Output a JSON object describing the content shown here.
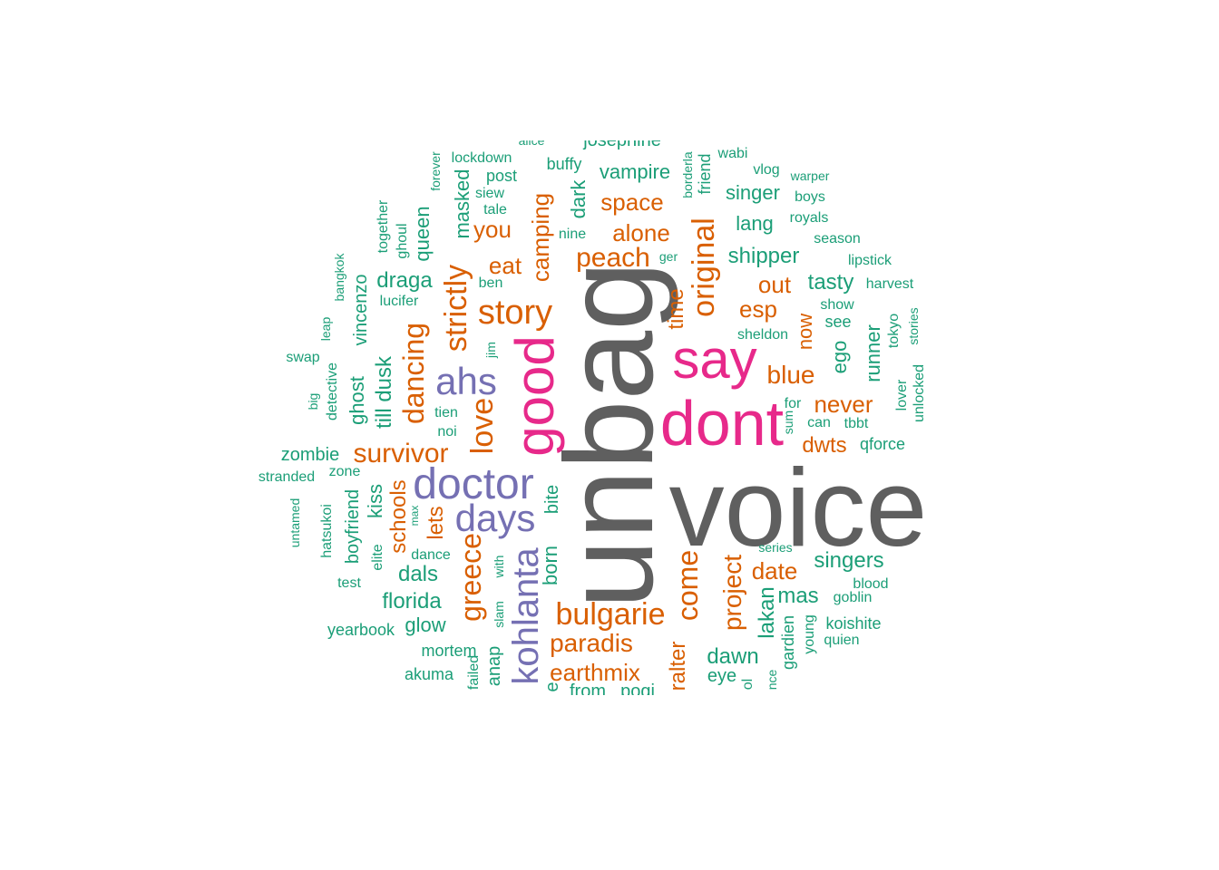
{
  "palette": {
    "gray": "#5f5f5f",
    "pink": "#e7298a",
    "purple": "#7570b3",
    "orange": "#d95f02",
    "teal": "#1b9e77"
  },
  "words": [
    {
      "id": "voice",
      "text": "voice",
      "color": "gray"
    },
    {
      "id": "unbag",
      "text": "unbag",
      "color": "gray"
    },
    {
      "id": "dont",
      "text": "dont",
      "color": "pink"
    },
    {
      "id": "say",
      "text": "say",
      "color": "pink"
    },
    {
      "id": "good",
      "text": "good",
      "color": "pink"
    },
    {
      "id": "doctor",
      "text": "doctor",
      "color": "purple"
    },
    {
      "id": "days",
      "text": "days",
      "color": "purple"
    },
    {
      "id": "ahs",
      "text": "ahs",
      "color": "purple"
    },
    {
      "id": "kohlanta",
      "text": "kohlanta",
      "color": "purple"
    },
    {
      "id": "story",
      "text": "story",
      "color": "orange"
    },
    {
      "id": "love",
      "text": "love",
      "color": "orange"
    },
    {
      "id": "strictly",
      "text": "strictly",
      "color": "orange"
    },
    {
      "id": "original",
      "text": "original",
      "color": "orange"
    },
    {
      "id": "bulgarie",
      "text": "bulgarie",
      "color": "orange"
    },
    {
      "id": "survivor",
      "text": "survivor",
      "color": "orange"
    },
    {
      "id": "greece",
      "text": "greece",
      "color": "orange"
    },
    {
      "id": "come",
      "text": "come",
      "color": "orange"
    },
    {
      "id": "dancing",
      "text": "dancing",
      "color": "orange"
    },
    {
      "id": "project",
      "text": "project",
      "color": "orange"
    },
    {
      "id": "peach",
      "text": "peach",
      "color": "orange"
    },
    {
      "id": "paradis",
      "text": "paradis",
      "color": "orange"
    },
    {
      "id": "earthmix",
      "text": "earthmix",
      "color": "orange"
    },
    {
      "id": "alone",
      "text": "alone",
      "color": "orange"
    },
    {
      "id": "space",
      "text": "space",
      "color": "orange"
    },
    {
      "id": "esp",
      "text": "esp",
      "color": "orange"
    },
    {
      "id": "out",
      "text": "out",
      "color": "orange"
    },
    {
      "id": "blue",
      "text": "blue",
      "color": "orange"
    },
    {
      "id": "never",
      "text": "never",
      "color": "orange"
    },
    {
      "id": "dwts",
      "text": "dwts",
      "color": "orange"
    },
    {
      "id": "date",
      "text": "date",
      "color": "orange"
    },
    {
      "id": "camping",
      "text": "camping",
      "color": "orange"
    },
    {
      "id": "eat",
      "text": "eat",
      "color": "orange"
    },
    {
      "id": "you",
      "text": "you",
      "color": "orange"
    },
    {
      "id": "time",
      "text": "time",
      "color": "orange"
    },
    {
      "id": "now",
      "text": "now",
      "color": "orange"
    },
    {
      "id": "schools",
      "text": "schools",
      "color": "orange"
    },
    {
      "id": "lets",
      "text": "lets",
      "color": "orange"
    },
    {
      "id": "ralter",
      "text": "ralter",
      "color": "orange"
    },
    {
      "id": "singers",
      "text": "singers",
      "color": "teal"
    },
    {
      "id": "shipper",
      "text": "shipper",
      "color": "teal"
    },
    {
      "id": "singer",
      "text": "singer",
      "color": "teal"
    },
    {
      "id": "vampire",
      "text": "vampire",
      "color": "teal"
    },
    {
      "id": "tasty",
      "text": "tasty",
      "color": "teal"
    },
    {
      "id": "lang",
      "text": "lang",
      "color": "teal"
    },
    {
      "id": "draga",
      "text": "draga",
      "color": "teal"
    },
    {
      "id": "queen",
      "text": "queen",
      "color": "teal"
    },
    {
      "id": "masked",
      "text": "masked",
      "color": "teal"
    },
    {
      "id": "dark",
      "text": "dark",
      "color": "teal"
    },
    {
      "id": "vincenzo",
      "text": "vincenzo",
      "color": "teal"
    },
    {
      "id": "till-dusk",
      "text": "till dusk",
      "color": "teal"
    },
    {
      "id": "ghost",
      "text": "ghost",
      "color": "teal"
    },
    {
      "id": "kiss",
      "text": "kiss",
      "color": "teal"
    },
    {
      "id": "boyfriend",
      "text": "boyfriend",
      "color": "teal"
    },
    {
      "id": "dals",
      "text": "dals",
      "color": "teal"
    },
    {
      "id": "florida",
      "text": "florida",
      "color": "teal"
    },
    {
      "id": "glow",
      "text": "glow",
      "color": "teal"
    },
    {
      "id": "zombie",
      "text": "zombie",
      "color": "teal"
    },
    {
      "id": "mas",
      "text": "mas",
      "color": "teal"
    },
    {
      "id": "lakan",
      "text": "lakan",
      "color": "teal"
    },
    {
      "id": "dawn",
      "text": "dawn",
      "color": "teal"
    },
    {
      "id": "eye",
      "text": "eye",
      "color": "teal"
    },
    {
      "id": "runner",
      "text": "runner",
      "color": "teal"
    },
    {
      "id": "ego",
      "text": "ego",
      "color": "teal"
    },
    {
      "id": "anap",
      "text": "anap",
      "color": "teal"
    },
    {
      "id": "born",
      "text": "born",
      "color": "teal"
    },
    {
      "id": "bite",
      "text": "bite",
      "color": "teal"
    },
    {
      "id": "mortem",
      "text": "mortem",
      "color": "teal"
    },
    {
      "id": "akuma",
      "text": "akuma",
      "color": "teal"
    },
    {
      "id": "yearbook",
      "text": "yearbook",
      "color": "teal"
    },
    {
      "id": "koishite",
      "text": "koishite",
      "color": "teal"
    },
    {
      "id": "quien",
      "text": "quien",
      "color": "teal"
    },
    {
      "id": "young",
      "text": "young",
      "color": "teal"
    },
    {
      "id": "gardien",
      "text": "gardien",
      "color": "teal"
    },
    {
      "id": "goblin",
      "text": "goblin",
      "color": "teal"
    },
    {
      "id": "blood",
      "text": "blood",
      "color": "teal"
    },
    {
      "id": "series",
      "text": "series",
      "color": "teal"
    },
    {
      "id": "qforce",
      "text": "qforce",
      "color": "teal"
    },
    {
      "id": "tbbt",
      "text": "tbbt",
      "color": "teal"
    },
    {
      "id": "can",
      "text": "can",
      "color": "teal"
    },
    {
      "id": "sum",
      "text": "sum",
      "color": "teal"
    },
    {
      "id": "for",
      "text": "for",
      "color": "teal"
    },
    {
      "id": "sheldon",
      "text": "sheldon",
      "color": "teal"
    },
    {
      "id": "see",
      "text": "see",
      "color": "teal"
    },
    {
      "id": "show",
      "text": "show",
      "color": "teal"
    },
    {
      "id": "harvest",
      "text": "harvest",
      "color": "teal"
    },
    {
      "id": "lipstick",
      "text": "lipstick",
      "color": "teal"
    },
    {
      "id": "season",
      "text": "season",
      "color": "teal"
    },
    {
      "id": "royals",
      "text": "royals",
      "color": "teal"
    },
    {
      "id": "boys",
      "text": "boys",
      "color": "teal"
    },
    {
      "id": "warper",
      "text": "warper",
      "color": "teal"
    },
    {
      "id": "vlog",
      "text": "vlog",
      "color": "teal"
    },
    {
      "id": "wabi",
      "text": "wabi",
      "color": "teal"
    },
    {
      "id": "friend",
      "text": "friend",
      "color": "teal"
    },
    {
      "id": "borderla",
      "text": "borderla",
      "color": "teal"
    },
    {
      "id": "buffy",
      "text": "buffy",
      "color": "teal"
    },
    {
      "id": "josephine",
      "text": "josephine",
      "color": "teal"
    },
    {
      "id": "alice",
      "text": "alice",
      "color": "teal"
    },
    {
      "id": "lockdown",
      "text": "lockdown",
      "color": "teal"
    },
    {
      "id": "post",
      "text": "post",
      "color": "teal"
    },
    {
      "id": "siew",
      "text": "siew",
      "color": "teal"
    },
    {
      "id": "tale",
      "text": "tale",
      "color": "teal"
    },
    {
      "id": "forever",
      "text": "forever",
      "color": "teal"
    },
    {
      "id": "together",
      "text": "together",
      "color": "teal"
    },
    {
      "id": "ghoul",
      "text": "ghoul",
      "color": "teal"
    },
    {
      "id": "ben",
      "text": "ben",
      "color": "teal"
    },
    {
      "id": "lucifer",
      "text": "lucifer",
      "color": "teal"
    },
    {
      "id": "nine",
      "text": "nine",
      "color": "teal"
    },
    {
      "id": "ger",
      "text": "ger",
      "color": "teal"
    },
    {
      "id": "bangkok",
      "text": "bangkok",
      "color": "teal"
    },
    {
      "id": "leap",
      "text": "leap",
      "color": "teal"
    },
    {
      "id": "swap",
      "text": "swap",
      "color": "teal"
    },
    {
      "id": "detective",
      "text": "detective",
      "color": "teal"
    },
    {
      "id": "big",
      "text": "big",
      "color": "teal"
    },
    {
      "id": "jim",
      "text": "jim",
      "color": "teal"
    },
    {
      "id": "tien",
      "text": "tien",
      "color": "teal"
    },
    {
      "id": "noi",
      "text": "noi",
      "color": "teal"
    },
    {
      "id": "stranded",
      "text": "stranded",
      "color": "teal"
    },
    {
      "id": "zone",
      "text": "zone",
      "color": "teal"
    },
    {
      "id": "untamed",
      "text": "untamed",
      "color": "teal"
    },
    {
      "id": "hatsukoi",
      "text": "hatsukoi",
      "color": "teal"
    },
    {
      "id": "max",
      "text": "max",
      "color": "teal"
    },
    {
      "id": "dance",
      "text": "dance",
      "color": "teal"
    },
    {
      "id": "elite",
      "text": "elite",
      "color": "teal"
    },
    {
      "id": "with",
      "text": "with",
      "color": "teal"
    },
    {
      "id": "test",
      "text": "test",
      "color": "teal"
    },
    {
      "id": "slam",
      "text": "slam",
      "color": "teal"
    },
    {
      "id": "failed",
      "text": "failed",
      "color": "teal"
    },
    {
      "id": "from",
      "text": "from",
      "color": "teal"
    },
    {
      "id": "pogi",
      "text": "pogi",
      "color": "teal"
    },
    {
      "id": "e",
      "text": "e",
      "color": "teal"
    },
    {
      "id": "ol",
      "text": "ol",
      "color": "teal"
    },
    {
      "id": "nce",
      "text": "nce",
      "color": "teal"
    },
    {
      "id": "tokyo",
      "text": "tokyo",
      "color": "teal"
    },
    {
      "id": "stories",
      "text": "stories",
      "color": "teal"
    },
    {
      "id": "lover",
      "text": "lover",
      "color": "teal"
    },
    {
      "id": "unlocked",
      "text": "unlocked",
      "color": "teal"
    }
  ]
}
